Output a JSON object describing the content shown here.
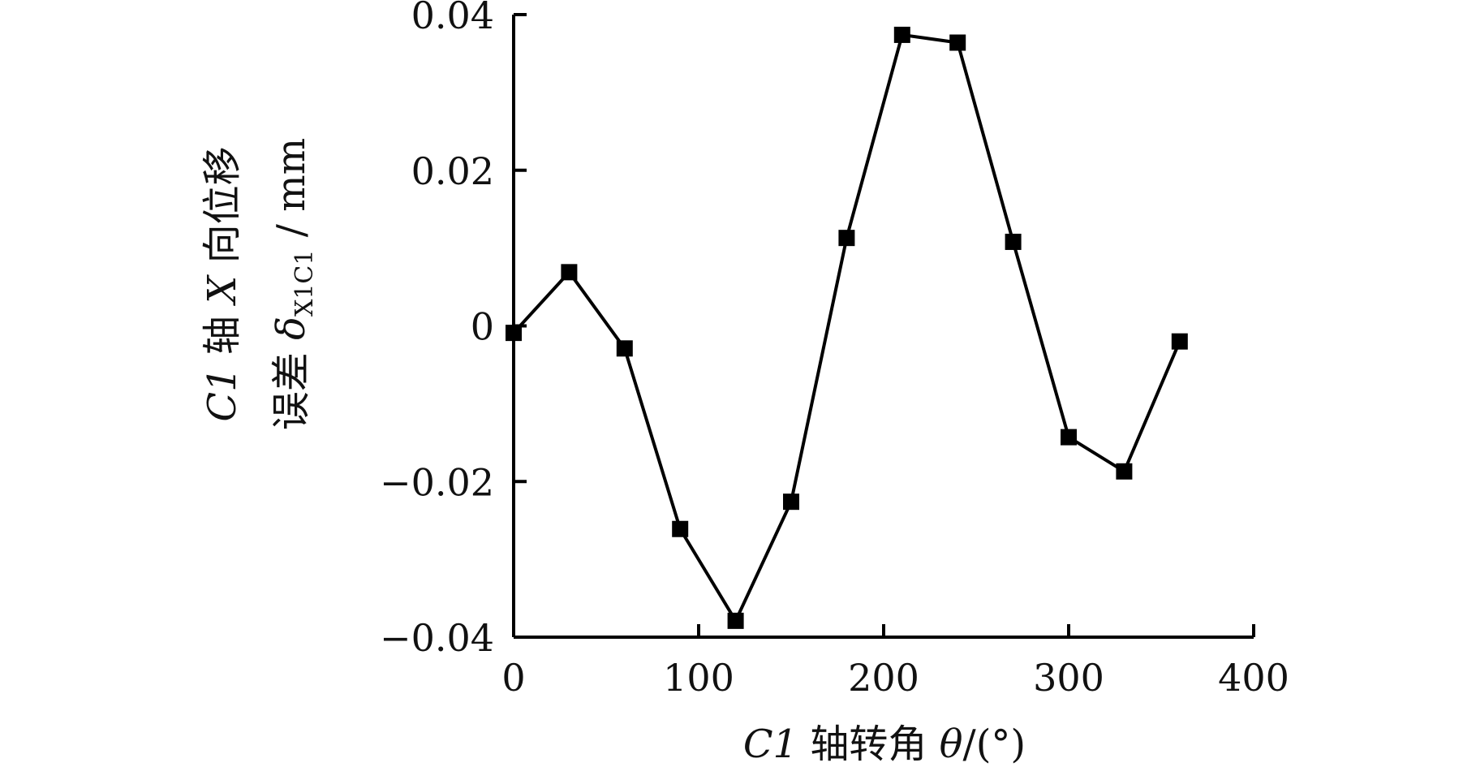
{
  "chart_data": {
    "type": "line",
    "title": "",
    "xlabel": "C1 轴转角 θ/(°)",
    "xlabel_parts": {
      "var": "C1",
      "text": " 轴转角 ",
      "symbol": "θ",
      "unit": "/(°)"
    },
    "ylabel_line1": "C1 轴 X 向位移",
    "ylabel_line1_parts": {
      "var": "C1",
      "text1": " 轴 ",
      "var2": "X",
      "text2": " 向位移"
    },
    "ylabel_line2": "误差 δX1C1 / mm",
    "ylabel_line2_parts": {
      "text": "误差 ",
      "symbol": "δ",
      "subscript": "X1C1",
      "unit": " / mm"
    },
    "xlim": [
      0,
      400
    ],
    "ylim": [
      -0.04,
      0.04
    ],
    "x_ticks": [
      0,
      100,
      200,
      300,
      400
    ],
    "y_ticks": [
      -0.04,
      -0.02,
      0,
      0.02,
      0.04
    ],
    "x_tick_labels": [
      "0",
      "100",
      "200",
      "300",
      "400"
    ],
    "y_tick_labels": [
      "−0.04",
      "−0.02",
      "0",
      "0.02",
      "0.04"
    ],
    "marker": "square",
    "grid": false,
    "series": [
      {
        "x": [
          0,
          30,
          60,
          90,
          120,
          150,
          180,
          210,
          240,
          270,
          300,
          330,
          360
        ],
        "y": [
          -0.0009,
          0.0069,
          -0.0029,
          -0.0261,
          -0.0379,
          -0.0226,
          0.0113,
          0.0374,
          0.0364,
          0.0108,
          -0.0143,
          -0.0187,
          -0.002
        ],
        "color": "#000000"
      }
    ]
  }
}
